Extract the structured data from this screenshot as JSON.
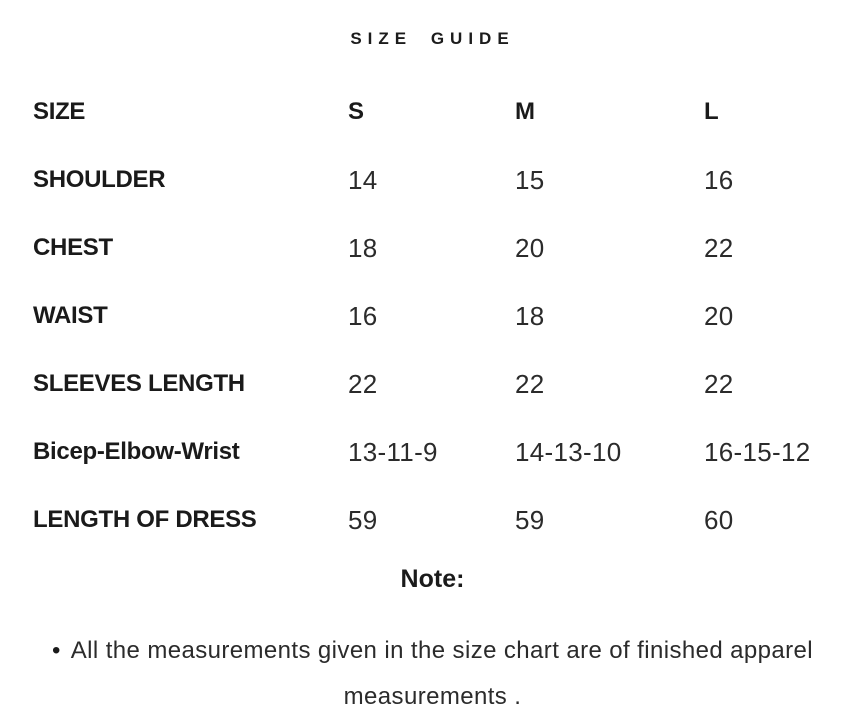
{
  "page": {
    "title": "SIZE GUIDE"
  },
  "colors": {
    "text": "#1c1c1c",
    "background": "#ffffff"
  },
  "table": {
    "header": {
      "label": "SIZE",
      "s": "S",
      "m": "M",
      "l": "L"
    },
    "rows": [
      {
        "label": "SHOULDER",
        "s": "14",
        "m": "15",
        "l": "16"
      },
      {
        "label": "CHEST",
        "s": "18",
        "m": "20",
        "l": "22"
      },
      {
        "label": "WAIST",
        "s": "16",
        "m": "18",
        "l": "20"
      },
      {
        "label": "SLEEVES LENGTH",
        "s": "22",
        "m": "22",
        "l": "22"
      },
      {
        "label": "Bicep-Elbow-Wrist",
        "s": "13-11-9",
        "m": "14-13-10",
        "l": "16-15-12"
      },
      {
        "label": "LENGTH OF DRESS",
        "s": "59",
        "m": "59",
        "l": "60"
      }
    ]
  },
  "note": {
    "heading": "Note:",
    "bullet": "•",
    "text": "All the measurements given in the size chart are of finished apparel measurements ."
  }
}
